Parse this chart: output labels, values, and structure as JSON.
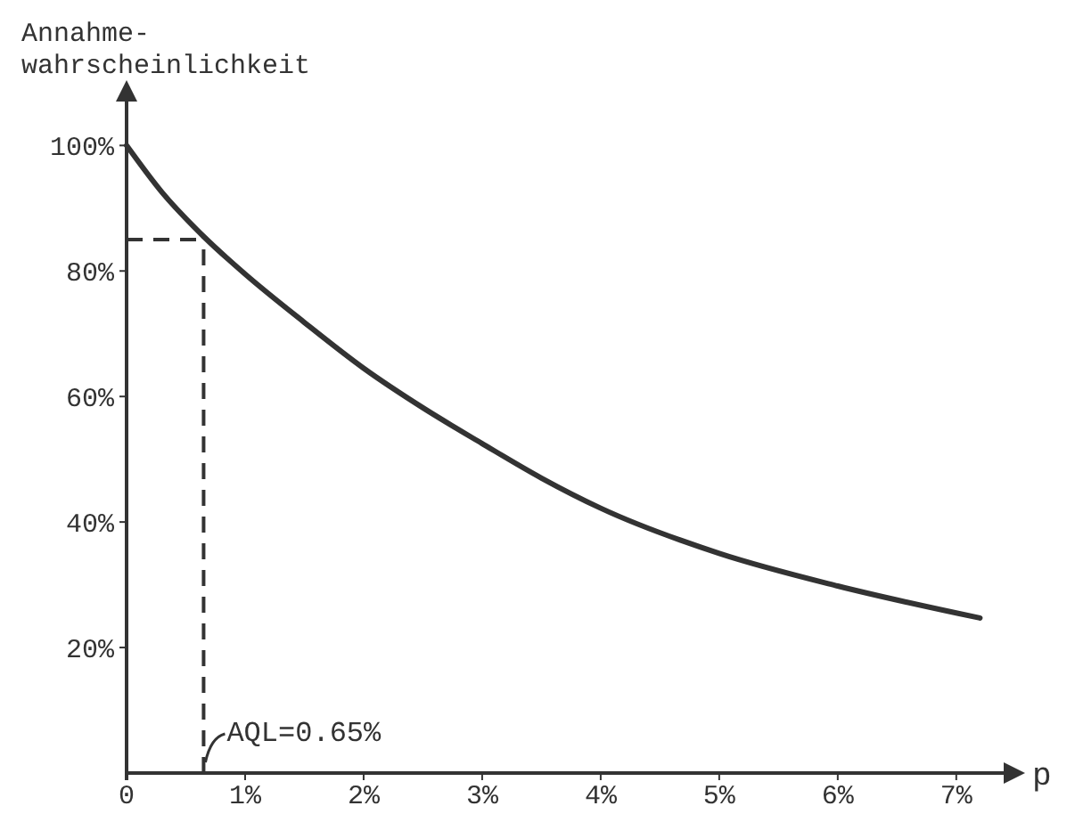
{
  "chart_data": {
    "type": "line",
    "xlabel": "p",
    "ylabel": "Annahme-\nwahrscheinlichkeit",
    "x": [
      0,
      0.3,
      0.65,
      1,
      1.5,
      2,
      2.5,
      3,
      3.5,
      4,
      5,
      6,
      7.2
    ],
    "series": [
      {
        "color": "#333333",
        "values": [
          100,
          92.5,
          85.5,
          79.5,
          71.8,
          64.5,
          58.2,
          52.5,
          47,
          42.2,
          35,
          29.8,
          24.7
        ]
      }
    ],
    "xlim": [
      0,
      7.4
    ],
    "ylim": [
      0,
      107
    ],
    "xticks": [
      0,
      {
        "value": 1,
        "label": "1%"
      },
      {
        "value": 2,
        "label": "2%"
      },
      {
        "value": 3,
        "label": "3%"
      },
      {
        "value": 4,
        "label": "4%"
      },
      {
        "value": 5,
        "label": "5%"
      },
      {
        "value": 6,
        "label": "6%"
      },
      {
        "value": 7,
        "label": "7%"
      }
    ],
    "yticks": [
      {
        "value": 20,
        "label": "20%"
      },
      {
        "value": 40,
        "label": "40%"
      },
      {
        "value": 60,
        "label": "60%"
      },
      {
        "value": 80,
        "label": "80%"
      },
      {
        "value": 100,
        "label": "100%"
      }
    ],
    "ref_lines": [
      {
        "axis": "x",
        "value": 0.65,
        "label": "AQL=0.65%",
        "line_style": "dashed"
      },
      {
        "axis": "y",
        "value": 85,
        "label": null,
        "line_style": "dashed"
      }
    ],
    "grid": false,
    "marker": "none",
    "line_style": "solid"
  }
}
